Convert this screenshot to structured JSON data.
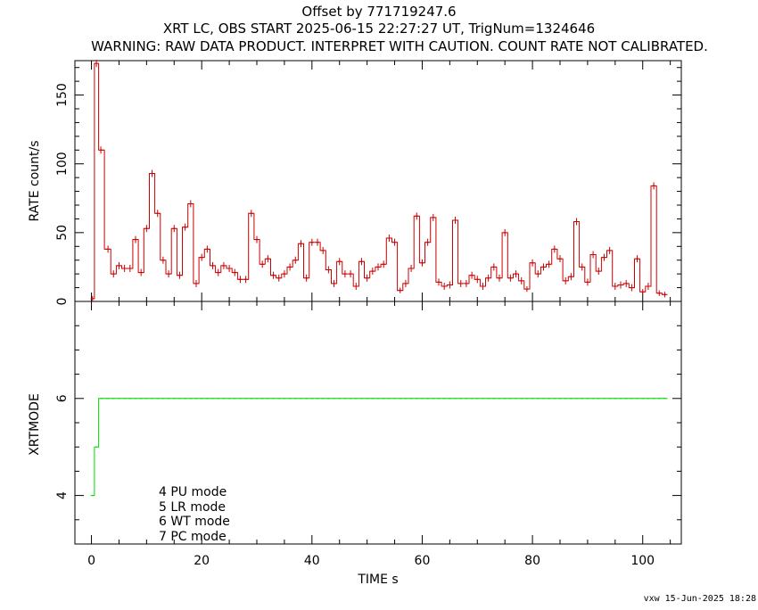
{
  "header": {
    "title_line1": "Offset by 771719247.6",
    "title_line2": "XRT LC, OBS START 2025-06-15 22:27:27 UT, TrigNum=1324646",
    "title_line3": "WARNING: RAW DATA PRODUCT. INTERPRET WITH CAUTION. COUNT RATE NOT CALIBRATED."
  },
  "footer": {
    "stamp": "vxw 15-Jun-2025 18:28"
  },
  "legend": {
    "items": [
      "4 PU mode",
      "5 LR mode",
      "6 WT mode",
      "7 PC mode"
    ]
  },
  "colors": {
    "rate": "#cc0000",
    "mode": "#00dd00",
    "axis": "#000000"
  },
  "chart_data": [
    {
      "type": "line",
      "style": "step-with-error-crosses",
      "ylabel": "RATE  count/s",
      "xlim": [
        -3,
        107
      ],
      "ylim": [
        0,
        175
      ],
      "yticks": [
        0,
        50,
        100,
        150
      ],
      "ytick_labels": [
        "0",
        "50",
        "100",
        "150"
      ],
      "series": [
        {
          "x": [
            0.2,
            0.9,
            1.7,
            3.0,
            4.0,
            5.0,
            6.0,
            7.0,
            8.0,
            9.0,
            10.0,
            11.0,
            12.0,
            13.0,
            14.0,
            15.0,
            16.0,
            17.0,
            18.0,
            19.0,
            20.0,
            21.0,
            22.0,
            23.0,
            24.0,
            25.0,
            26.0,
            27.0,
            28.0,
            29.0,
            30.0,
            31.0,
            32.0,
            33.0,
            34.0,
            35.0,
            36.0,
            37.0,
            38.0,
            39.0,
            40.0,
            41.0,
            42.0,
            43.0,
            44.0,
            45.0,
            46.0,
            47.0,
            48.0,
            49.0,
            50.0,
            51.0,
            52.0,
            53.0,
            54.0,
            55.0,
            56.0,
            57.0,
            58.0,
            59.0,
            60.0,
            61.0,
            62.0,
            63.0,
            64.0,
            65.0,
            66.0,
            67.0,
            68.0,
            69.0,
            70.0,
            71.0,
            72.0,
            73.0,
            74.0,
            75.0,
            76.0,
            77.0,
            78.0,
            79.0,
            80.0,
            81.0,
            82.0,
            83.0,
            84.0,
            85.0,
            86.0,
            87.0,
            88.0,
            89.0,
            90.0,
            91.0,
            92.0,
            93.0,
            94.0,
            95.0,
            96.0,
            97.0,
            98.0,
            99.0,
            100.0,
            101.0,
            102.0,
            103.0,
            104.0
          ],
          "y": [
            2,
            173,
            110,
            38,
            20,
            26,
            24,
            24,
            45,
            21,
            53,
            93,
            64,
            30,
            20,
            53,
            19,
            54,
            71,
            13,
            32,
            38,
            26,
            21,
            26,
            24,
            21,
            16,
            16,
            64,
            45,
            27,
            31,
            19,
            17,
            20,
            25,
            30,
            42,
            17,
            43,
            43,
            37,
            23,
            13,
            29,
            20,
            20,
            11,
            29,
            17,
            22,
            25,
            27,
            46,
            43,
            8,
            13,
            24,
            62,
            28,
            43,
            61,
            14,
            11,
            12,
            59,
            13,
            13,
            19,
            16,
            11,
            17,
            25,
            17,
            50,
            17,
            20,
            15,
            9,
            28,
            20,
            25,
            27,
            38,
            31,
            15,
            18,
            58,
            25,
            14,
            34,
            22,
            32,
            37,
            11,
            12,
            13,
            10,
            31,
            7,
            11,
            84,
            6,
            5
          ],
          "y_err": [
            2,
            10,
            8,
            5,
            4,
            4,
            4,
            4,
            5,
            4,
            5,
            7,
            6,
            4,
            4,
            5,
            4,
            5,
            6,
            3,
            4,
            5,
            4,
            4,
            4,
            4,
            4,
            3,
            3,
            6,
            5,
            4,
            4,
            3,
            3,
            4,
            4,
            4,
            5,
            3,
            5,
            5,
            5,
            4,
            3,
            4,
            3,
            3,
            3,
            4,
            3,
            4,
            4,
            4,
            5,
            5,
            2,
            3,
            4,
            6,
            4,
            5,
            6,
            3,
            3,
            3,
            6,
            3,
            3,
            3,
            3,
            3,
            3,
            4,
            3,
            5,
            3,
            3,
            3,
            2,
            4,
            3,
            4,
            4,
            5,
            4,
            3,
            3,
            6,
            4,
            3,
            4,
            4,
            4,
            5,
            3,
            3,
            3,
            3,
            4,
            2,
            3,
            7,
            2,
            2
          ]
        }
      ]
    },
    {
      "type": "line",
      "style": "step-with-error-crosses",
      "xlabel": "TIME  s",
      "ylabel": "XRTMODE",
      "xlim": [
        -3,
        107
      ],
      "ylim": [
        3,
        8
      ],
      "xticks": [
        0,
        20,
        40,
        60,
        80,
        100
      ],
      "xtick_labels": [
        "0",
        "20",
        "40",
        "60",
        "80",
        "100"
      ],
      "yticks": [
        4,
        6
      ],
      "ytick_labels": [
        "4",
        "6"
      ],
      "series": [
        {
          "x": [
            0.2,
            0.9,
            1.7,
            3.0,
            4.0,
            5.0,
            6.0,
            7.0,
            8.0,
            9.0,
            10.0,
            11.0,
            12.0,
            13.0,
            14.0,
            15.0,
            16.0,
            17.0,
            18.0,
            19.0,
            20.0,
            21.0,
            22.0,
            23.0,
            24.0,
            25.0,
            26.0,
            27.0,
            28.0,
            29.0,
            30.0,
            31.0,
            32.0,
            33.0,
            34.0,
            35.0,
            36.0,
            37.0,
            38.0,
            39.0,
            40.0,
            41.0,
            42.0,
            43.0,
            44.0,
            45.0,
            46.0,
            47.0,
            48.0,
            49.0,
            50.0,
            51.0,
            52.0,
            53.0,
            54.0,
            55.0,
            56.0,
            57.0,
            58.0,
            59.0,
            60.0,
            61.0,
            62.0,
            63.0,
            64.0,
            65.0,
            66.0,
            67.0,
            68.0,
            69.0,
            70.0,
            71.0,
            72.0,
            73.0,
            74.0,
            75.0,
            76.0,
            77.0,
            78.0,
            79.0,
            80.0,
            81.0,
            82.0,
            83.0,
            84.0,
            85.0,
            86.0,
            87.0,
            88.0,
            89.0,
            90.0,
            91.0,
            92.0,
            93.0,
            94.0,
            95.0,
            96.0,
            97.0,
            98.0,
            99.0,
            100.0,
            101.0,
            102.0,
            103.0,
            104.0
          ],
          "y": [
            4,
            5,
            6,
            6,
            6,
            6,
            6,
            6,
            6,
            6,
            6,
            6,
            6,
            6,
            6,
            6,
            6,
            6,
            6,
            6,
            6,
            6,
            6,
            6,
            6,
            6,
            6,
            6,
            6,
            6,
            6,
            6,
            6,
            6,
            6,
            6,
            6,
            6,
            6,
            6,
            6,
            6,
            6,
            6,
            6,
            6,
            6,
            6,
            6,
            6,
            6,
            6,
            6,
            6,
            6,
            6,
            6,
            6,
            6,
            6,
            6,
            6,
            6,
            6,
            6,
            6,
            6,
            6,
            6,
            6,
            6,
            6,
            6,
            6,
            6,
            6,
            6,
            6,
            6,
            6,
            6,
            6,
            6,
            6,
            6,
            6,
            6,
            6,
            6,
            6,
            6,
            6,
            6,
            6,
            6,
            6,
            6,
            6,
            6,
            6,
            6,
            6,
            6,
            6,
            6
          ]
        }
      ]
    }
  ]
}
